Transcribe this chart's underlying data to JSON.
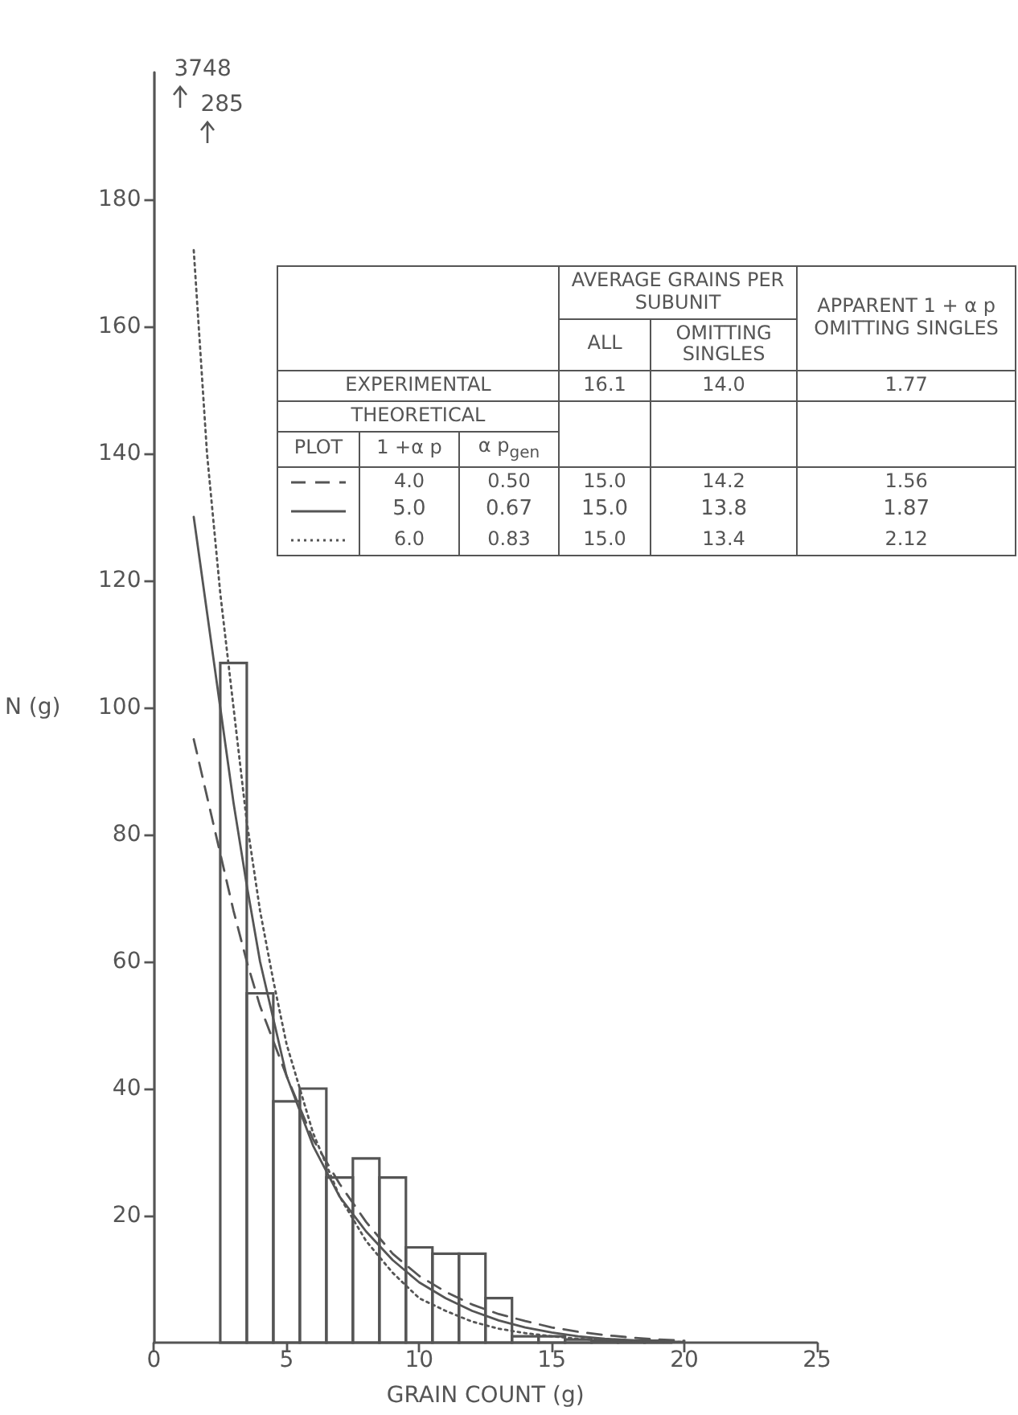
{
  "chart_data": {
    "type": "histogram",
    "xlabel": "GRAIN COUNT (g)",
    "ylabel": "N (g)",
    "bins": [
      0.5,
      1.5,
      2.5,
      3.5,
      4.5,
      5.5,
      6.5,
      7.5,
      8.5,
      9.5,
      10.5,
      11.5,
      12.5,
      13.5,
      14.5,
      15.5,
      16.5,
      17.5,
      18.5,
      19.5
    ],
    "values": [
      null,
      null,
      107,
      55,
      38,
      40,
      26,
      29,
      26,
      15,
      14,
      14,
      7,
      1,
      1,
      0.5,
      0.3,
      0.3,
      0.3
    ],
    "color": "#555555",
    "series": [
      {
        "type": "line",
        "line_style": "dashed",
        "color": "#555555",
        "x": [
          1.5,
          2,
          2.5,
          3,
          3.5,
          4,
          5,
          6,
          7,
          8,
          9,
          10,
          11,
          12,
          13,
          14,
          15,
          16,
          17,
          18,
          19,
          20
        ],
        "values": [
          95,
          86,
          77,
          68,
          60,
          53,
          42,
          32,
          25,
          19,
          14,
          10.5,
          8,
          6,
          4.5,
          3.4,
          2.4,
          1.7,
          1.2,
          0.8,
          0.5,
          0.3
        ]
      },
      {
        "type": "line",
        "line_style": "solid",
        "color": "#555555",
        "x": [
          1.5,
          2,
          2.5,
          3,
          3.5,
          4,
          5,
          6,
          7,
          8,
          9,
          10,
          11,
          12,
          13,
          14,
          15,
          16,
          17,
          18,
          19,
          20
        ],
        "values": [
          130,
          115,
          100,
          85,
          72,
          60,
          42,
          31,
          23,
          17.5,
          13,
          9.5,
          7,
          5,
          3.5,
          2.4,
          1.6,
          1,
          0.6,
          0.4,
          0.2,
          0.1
        ]
      },
      {
        "type": "line",
        "line_style": "dotted",
        "color": "#555555",
        "x": [
          1.5,
          2,
          2.5,
          3,
          3.5,
          4,
          4.5,
          5,
          6,
          7,
          8,
          9,
          10,
          11,
          12,
          13,
          14,
          15,
          16,
          17,
          18,
          19,
          20
        ],
        "values": [
          172,
          140,
          118,
          100,
          82,
          68,
          57,
          47,
          33,
          23,
          16,
          11,
          7,
          5,
          3.3,
          2.2,
          1.5,
          1,
          0.6,
          0.4,
          0.2,
          0.1,
          0.1
        ]
      }
    ],
    "xlim": [
      0,
      25
    ],
    "xticks": [
      0,
      5,
      10,
      15,
      20,
      25
    ],
    "ylim": [
      0,
      200
    ],
    "yticks": [
      20,
      40,
      60,
      80,
      100,
      120,
      140,
      160,
      180
    ],
    "grid": false,
    "annotations": [
      "AVERAGE GRAINS PER SUBUNIT",
      "APPARENT 1 + α p OMITTING SINGLES",
      "ALL",
      "OMITTING SINGLES",
      "EXPERIMENTAL",
      "16.1",
      "14.0",
      "1.77",
      "THEORETICAL",
      "PLOT",
      "1 +α p",
      "α p$_{gen}$",
      "4.0",
      "0.50",
      "15.0",
      "14.2",
      "1.56",
      "5.0",
      "0.67",
      "15.0",
      "13.8",
      "1.87",
      "6.0",
      "0.83",
      "15.0",
      "13.4",
      "2.12",
      "3748",
      "285"
    ]
  }
}
